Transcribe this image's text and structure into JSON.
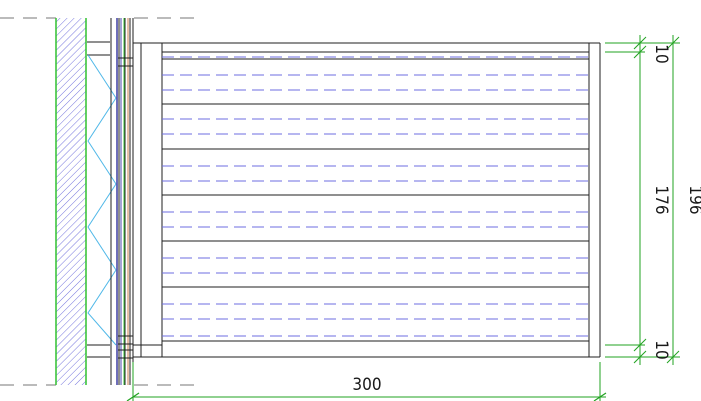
{
  "colors": {
    "line": "#1f1f1f",
    "dim": "#22a322",
    "wall_edge": "#3cc43c",
    "hatch": "#3a3ad0",
    "dash_inner": "#6c6ce0",
    "zigzag": "#50b8e8",
    "post": "#4a4aa8",
    "dash_outer": "#777777"
  },
  "dimensions": {
    "width": "300",
    "top_margin": "10",
    "span": "176",
    "bottom_margin": "10",
    "total": "196"
  }
}
